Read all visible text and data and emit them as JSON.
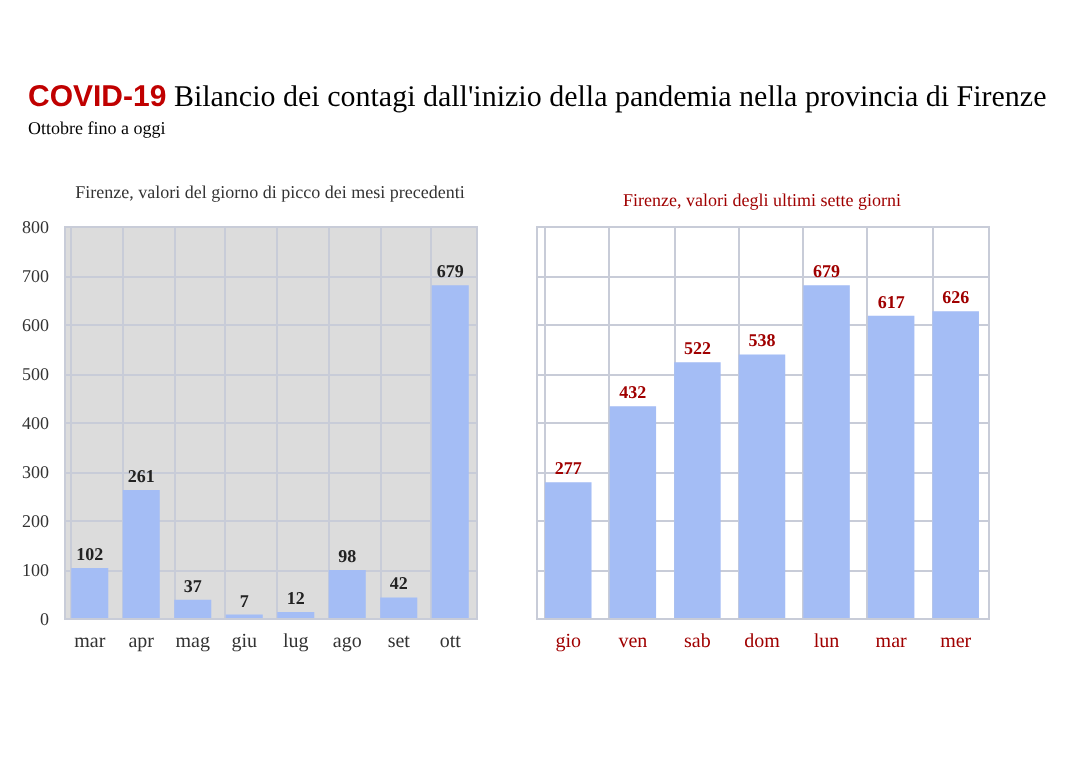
{
  "chart_data": [
    {
      "type": "bar",
      "title": "Firenze, valori del giorno di picco dei mesi precedenti",
      "annotations": [
        "COVID-19 Bilancio dei contagi dall'inizio della pandemia nella provincia di Firenze",
        "Ottobre fino a oggi"
      ],
      "categories": [
        "mar",
        "apr",
        "mag",
        "giu",
        "lug",
        "ago",
        "set",
        "ott"
      ],
      "values": [
        102,
        261,
        37,
        7,
        12,
        98,
        42,
        679
      ],
      "color": "#a4bdf5",
      "ylim": [
        0,
        800
      ],
      "yticks": [
        0,
        100,
        200,
        300,
        400,
        500,
        600,
        700,
        800
      ],
      "grid": true,
      "data_labels": true
    },
    {
      "type": "bar",
      "title": "Firenze, valori degli ultimi sette giorni",
      "categories": [
        "gio",
        "ven",
        "sab",
        "dom",
        "lun",
        "mar",
        "mer"
      ],
      "values": [
        277,
        432,
        522,
        538,
        679,
        617,
        626
      ],
      "color": "#a4bdf5",
      "ylim": [
        0,
        800
      ],
      "yticks": [
        0,
        100,
        200,
        300,
        400,
        500,
        600,
        700,
        800
      ],
      "grid": true,
      "data_labels": true,
      "tick_labels": "x"
    }
  ]
}
